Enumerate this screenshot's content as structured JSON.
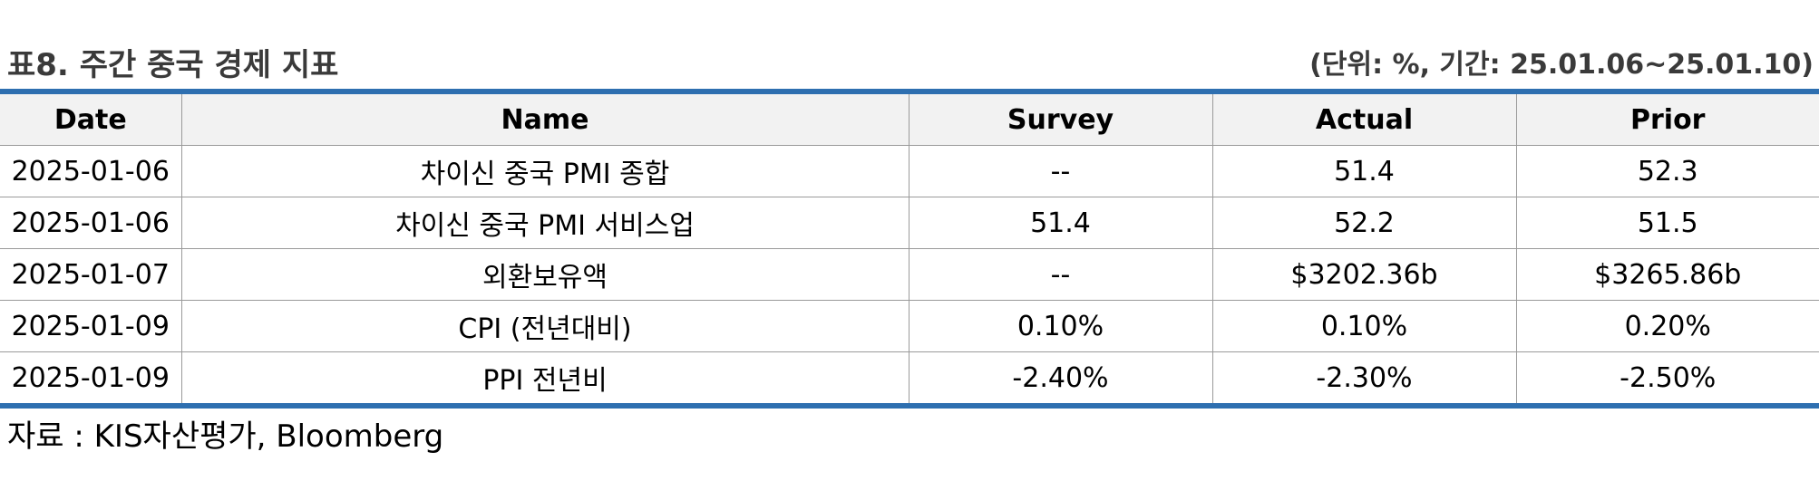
{
  "header": {
    "title": "표8. 주간 중국 경제 지표",
    "unit": "(단위: %, 기간: 25.01.06~25.01.10)"
  },
  "table": {
    "columns": [
      "Date",
      "Name",
      "Survey",
      "Actual",
      "Prior"
    ],
    "rows": [
      [
        "2025-01-06",
        "차이신 중국 PMI 종합",
        "--",
        "51.4",
        "52.3"
      ],
      [
        "2025-01-06",
        "차이신 중국 PMI 서비스업",
        "51.4",
        "52.2",
        "51.5"
      ],
      [
        "2025-01-07",
        "외환보유액",
        "--",
        "$3202.36b",
        "$3265.86b"
      ],
      [
        "2025-01-09",
        "CPI (전년대비)",
        "0.10%",
        "0.10%",
        "0.20%"
      ],
      [
        "2025-01-09",
        "PPI 전년비",
        "-2.40%",
        "-2.30%",
        "-2.50%"
      ]
    ]
  },
  "footer": {
    "source": "자료 : KIS자산평가, Bloomberg"
  },
  "colors": {
    "accent_rule": "#2e6fb0",
    "header_bg": "#f2f2f2"
  }
}
